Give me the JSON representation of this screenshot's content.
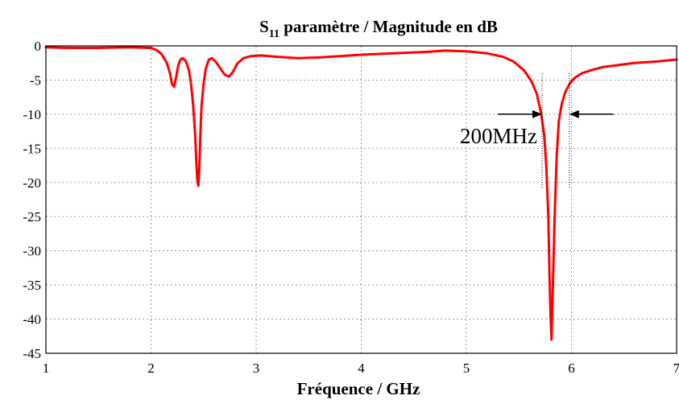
{
  "chart_data": {
    "type": "line",
    "title": {
      "main": "S",
      "sub": "11",
      "rest": " paramètre / Magnitude en dB"
    },
    "xlabel": "Fréquence / GHz",
    "ylabel": "",
    "xlim": [
      1,
      7
    ],
    "ylim": [
      -45,
      0
    ],
    "xticks": [
      1,
      2,
      3,
      4,
      5,
      6,
      7
    ],
    "yticks": [
      0,
      -5,
      -10,
      -15,
      -20,
      -25,
      -30,
      -35,
      -40,
      -45
    ],
    "grid": true,
    "series_color": "#ff0000",
    "series": [
      {
        "x": [
          1.0,
          1.2,
          1.5,
          1.8,
          2.0,
          2.05,
          2.1,
          2.15,
          2.18,
          2.2,
          2.22,
          2.24,
          2.26,
          2.28,
          2.3,
          2.33,
          2.36,
          2.38,
          2.4,
          2.42,
          2.43,
          2.44,
          2.45,
          2.46,
          2.47,
          2.48,
          2.5,
          2.52,
          2.55,
          2.58,
          2.62,
          2.66,
          2.7,
          2.74,
          2.78,
          2.82,
          2.88,
          2.95,
          3.05,
          3.2,
          3.4,
          3.6,
          3.8,
          4.0,
          4.3,
          4.6,
          4.8,
          5.0,
          5.2,
          5.35,
          5.45,
          5.55,
          5.62,
          5.67,
          5.71,
          5.74,
          5.76,
          5.78,
          5.79,
          5.8,
          5.81,
          5.82,
          5.84,
          5.86,
          5.88,
          5.91,
          5.94,
          5.98,
          6.03,
          6.1,
          6.2,
          6.3,
          6.45,
          6.6,
          6.8,
          7.0
        ],
        "y": [
          -0.2,
          -0.3,
          -0.3,
          -0.2,
          -0.3,
          -0.6,
          -1.2,
          -2.5,
          -4.0,
          -5.6,
          -6.0,
          -4.5,
          -2.8,
          -2.0,
          -1.8,
          -2.2,
          -3.5,
          -5.5,
          -8.5,
          -13.0,
          -16.5,
          -19.5,
          -20.5,
          -18.0,
          -13.0,
          -9.0,
          -5.5,
          -3.4,
          -2.0,
          -1.8,
          -2.4,
          -3.3,
          -4.2,
          -4.5,
          -3.8,
          -2.6,
          -1.8,
          -1.5,
          -1.4,
          -1.6,
          -1.8,
          -1.7,
          -1.5,
          -1.3,
          -1.1,
          -0.9,
          -0.7,
          -0.8,
          -1.1,
          -1.6,
          -2.3,
          -3.6,
          -5.2,
          -7.0,
          -9.8,
          -13.0,
          -17.5,
          -25.0,
          -33.0,
          -39.0,
          -43.0,
          -37.0,
          -25.0,
          -16.0,
          -11.0,
          -8.3,
          -6.8,
          -5.6,
          -4.7,
          -4.0,
          -3.5,
          -3.1,
          -2.8,
          -2.5,
          -2.3,
          -2.0
        ]
      }
    ],
    "annotation": {
      "text": "200MHz",
      "x_left": 5.72,
      "x_right": 5.98,
      "arrow_y": -10,
      "arrow_from_left_x": 5.3,
      "arrow_from_right_x": 6.4,
      "guide_top": -4,
      "guide_bottom": -21
    }
  }
}
